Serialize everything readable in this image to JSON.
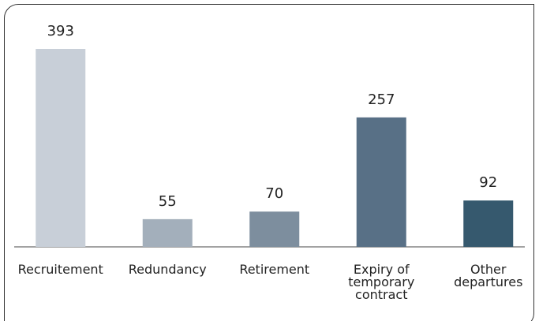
{
  "chart_data": {
    "type": "bar",
    "categories": [
      "Recruitement",
      "Redundancy",
      "Retirement",
      "Expiry of temporary contract",
      "Other departures"
    ],
    "values": [
      393,
      55,
      70,
      257,
      92
    ],
    "colors": [
      "#c8cfd8",
      "#a3afbb",
      "#7d8e9e",
      "#587086",
      "#36596e"
    ]
  }
}
